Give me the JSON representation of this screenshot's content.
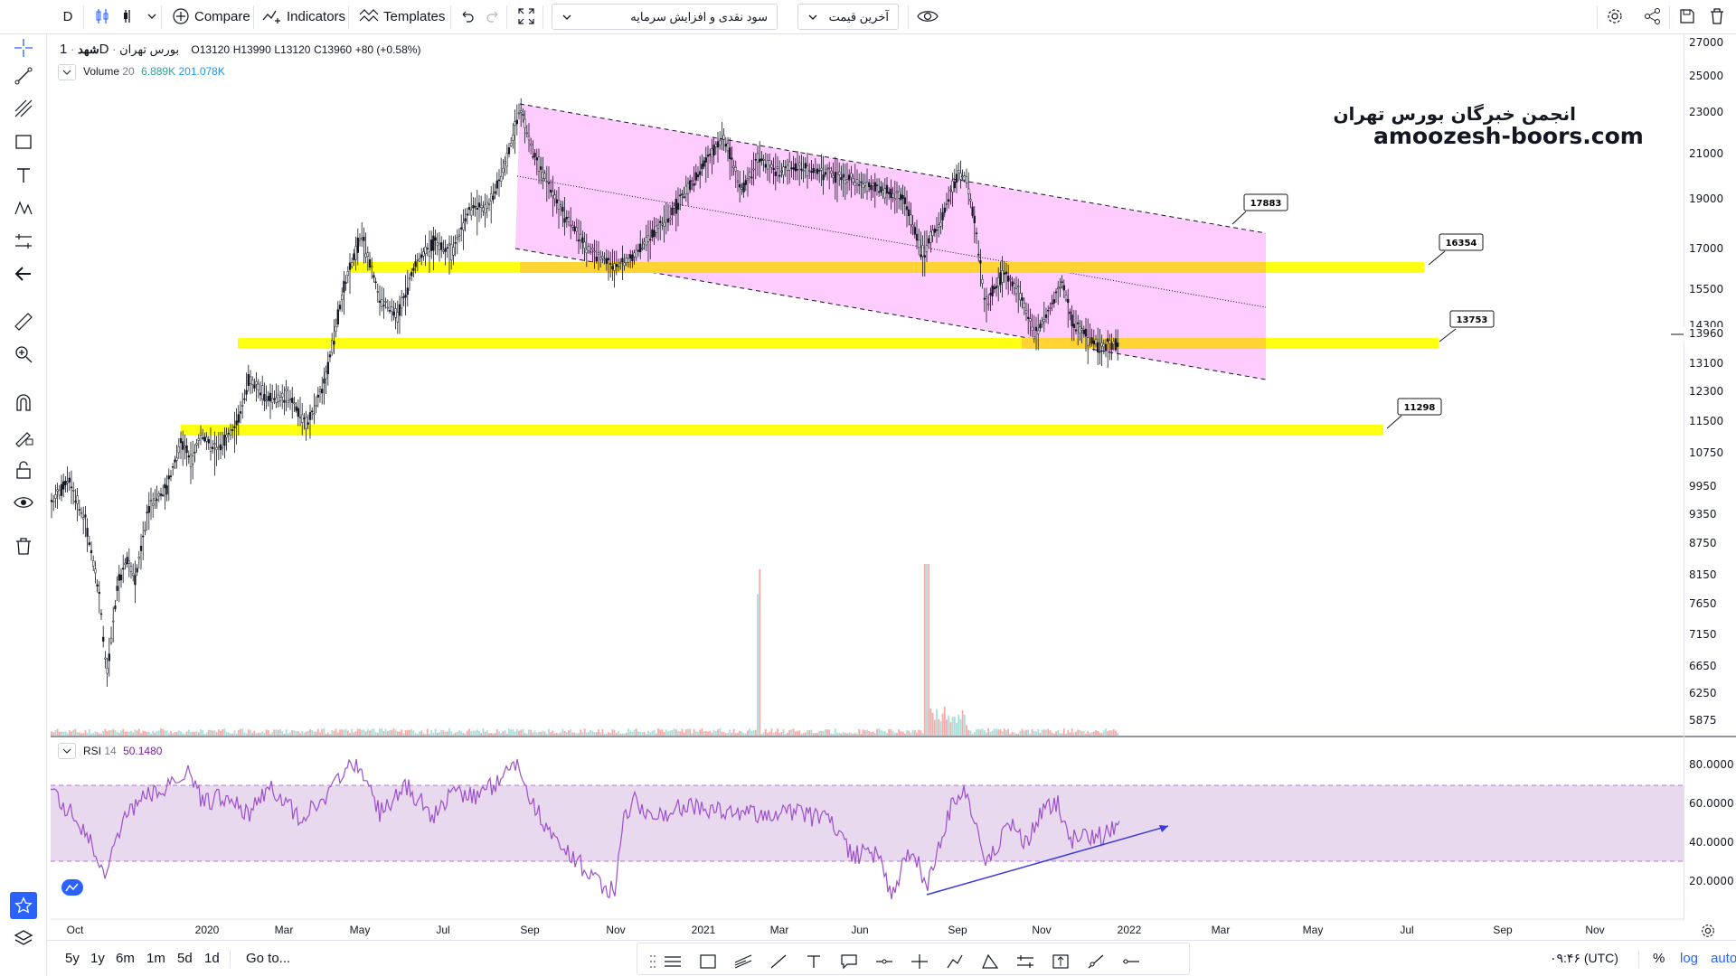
{
  "toolbar": {
    "interval": "D",
    "compare_label": "Compare",
    "indicators_label": "Indicators",
    "templates_label": "Templates",
    "dropdown_main": "سود نقدی و افزایش سرمایه",
    "dropdown_price": "آخرین قیمت"
  },
  "legend": {
    "symbol": "شهد",
    "interval": "1D",
    "exchange": "بورس تهران",
    "open": "O13120",
    "high": "H13990",
    "low": "L13120",
    "close": "C13960",
    "change": "+80 (+0.58%)",
    "volume_label": "Volume",
    "volume_length": "20",
    "volume_value1": "6.889K",
    "volume_value2": "201.078K",
    "rsi_label": "RSI",
    "rsi_length": "14",
    "rsi_value": "50.1480"
  },
  "watermark": {
    "line1": "انجمن خبرگان بورس تهران",
    "line2": "amoozesh-boors.com"
  },
  "levels": {
    "l1": "17883",
    "l2": "16354",
    "l3": "13753",
    "l4": "11298"
  },
  "price_axis": [
    "27000",
    "25000",
    "23000",
    "21000",
    "19000",
    "17000",
    "15500",
    "14300",
    "13100",
    "12300",
    "11500",
    "10750",
    "9950",
    "9350",
    "8750",
    "8150",
    "7650",
    "7150",
    "6650",
    "6250",
    "5875"
  ],
  "current_price": "13960",
  "rsi_axis": [
    "80.0000",
    "60.0000",
    "40.0000",
    "20.0000"
  ],
  "time_axis": [
    "Oct",
    "2020",
    "Mar",
    "May",
    "Jul",
    "Sep",
    "Nov",
    "2021",
    "Mar",
    "Jun",
    "Sep",
    "Nov",
    "2022",
    "Mar",
    "May",
    "Jul",
    "Sep",
    "Nov"
  ],
  "bottom": {
    "ranges": [
      "5y",
      "1y",
      "6m",
      "1m",
      "5d",
      "1d"
    ],
    "goto": "Go to...",
    "time": "۰۹:۴۶ (UTC)",
    "percent": "%",
    "log": "log",
    "auto": "auto"
  },
  "colors": {
    "channel_fill": "#ffccff",
    "level_fill": "#ffff00",
    "rsi_line": "#9c4fce",
    "rsi_band": "#e8d9ef",
    "trend_line": "#3a3adc",
    "accent": "#2962ff"
  }
}
